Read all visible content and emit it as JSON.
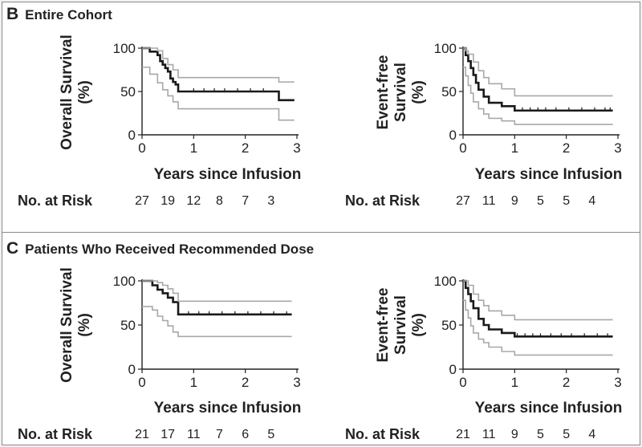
{
  "panels": [
    {
      "letter": "B",
      "title": "Entire Cohort",
      "risk_label": "No. at Risk",
      "charts": [
        {
          "type": "line",
          "ylabel_lines": [
            "Overall Survival",
            "(%)"
          ],
          "xlabel": "Years since Infusion",
          "xlim": [
            0,
            3
          ],
          "ylim": [
            0,
            100
          ],
          "xticks": [
            0,
            1,
            2,
            3
          ],
          "yticks": [
            0,
            50,
            100
          ],
          "series": [
            {
              "name": "estimate",
              "x": [
                0,
                0.15,
                0.3,
                0.35,
                0.4,
                0.45,
                0.5,
                0.55,
                0.6,
                0.65,
                0.7,
                2.65,
                2.95
              ],
              "y": [
                100,
                96,
                92,
                85,
                81,
                77,
                73,
                65,
                61,
                58,
                50,
                40,
                40
              ]
            },
            {
              "name": "upper",
              "x": [
                0,
                0.3,
                0.4,
                0.5,
                0.6,
                0.7,
                2.65,
                2.95
              ],
              "y": [
                100,
                97,
                88,
                81,
                75,
                66,
                61,
                61
              ]
            },
            {
              "name": "lower",
              "x": [
                0,
                0.15,
                0.3,
                0.4,
                0.5,
                0.6,
                0.7,
                2.65,
                2.95
              ],
              "y": [
                78,
                70,
                60,
                52,
                45,
                38,
                30,
                17,
                17
              ]
            }
          ],
          "censor_x": [
            1.0,
            1.2,
            1.4,
            1.6,
            1.85,
            2.1,
            2.35
          ],
          "risk_x": [
            0,
            0.5,
            1.0,
            1.5,
            2.0,
            2.5
          ],
          "risk_values": [
            "27",
            "19",
            "12",
            "8",
            "7",
            "3"
          ]
        },
        {
          "type": "line",
          "ylabel_lines": [
            "Event-free",
            "Survival",
            "(%)"
          ],
          "xlabel": "Years since Infusion",
          "xlim": [
            0,
            3
          ],
          "ylim": [
            0,
            100
          ],
          "xticks": [
            0,
            1,
            2,
            3
          ],
          "yticks": [
            0,
            50,
            100
          ],
          "series": [
            {
              "name": "estimate",
              "x": [
                0,
                0.05,
                0.1,
                0.15,
                0.2,
                0.25,
                0.3,
                0.4,
                0.5,
                0.75,
                1.0,
                2.9
              ],
              "y": [
                100,
                92,
                85,
                77,
                69,
                60,
                52,
                44,
                37,
                33,
                28,
                28
              ]
            },
            {
              "name": "upper",
              "x": [
                0,
                0.05,
                0.1,
                0.2,
                0.3,
                0.4,
                0.5,
                0.75,
                1.0,
                2.9
              ],
              "y": [
                100,
                97,
                93,
                84,
                74,
                66,
                59,
                53,
                45,
                45
              ]
            },
            {
              "name": "lower",
              "x": [
                0,
                0.05,
                0.1,
                0.15,
                0.2,
                0.3,
                0.4,
                0.5,
                0.75,
                1.0,
                2.9
              ],
              "y": [
                78,
                68,
                57,
                48,
                38,
                30,
                24,
                19,
                16,
                12,
                12
              ]
            }
          ],
          "censor_x": [
            1.15,
            1.3,
            1.45,
            1.6,
            1.8,
            2.05,
            2.3,
            2.55,
            2.75,
            2.85
          ],
          "risk_x": [
            0,
            0.5,
            1.0,
            1.5,
            2.0,
            2.5
          ],
          "risk_values": [
            "27",
            "11",
            "9",
            "5",
            "5",
            "4"
          ]
        }
      ]
    },
    {
      "letter": "C",
      "title": "Patients Who Received Recommended Dose",
      "risk_label": "No. at Risk",
      "charts": [
        {
          "type": "line",
          "ylabel_lines": [
            "Overall Survival",
            "(%)"
          ],
          "xlabel": "Years since Infusion",
          "xlim": [
            0,
            3
          ],
          "ylim": [
            0,
            100
          ],
          "xticks": [
            0,
            1,
            2,
            3
          ],
          "yticks": [
            0,
            50,
            100
          ],
          "series": [
            {
              "name": "estimate",
              "x": [
                0,
                0.2,
                0.3,
                0.4,
                0.5,
                0.6,
                0.7,
                2.9
              ],
              "y": [
                100,
                95,
                90,
                86,
                81,
                76,
                62,
                62
              ]
            },
            {
              "name": "upper",
              "x": [
                0,
                0.3,
                0.4,
                0.5,
                0.6,
                0.7,
                2.9
              ],
              "y": [
                100,
                98,
                95,
                91,
                86,
                77,
                77
              ]
            },
            {
              "name": "lower",
              "x": [
                0,
                0.2,
                0.3,
                0.4,
                0.5,
                0.6,
                0.7,
                2.9
              ],
              "y": [
                71,
                67,
                60,
                55,
                49,
                42,
                37,
                37
              ]
            }
          ],
          "censor_x": [
            0.9,
            1.1,
            1.3,
            1.55,
            1.8,
            2.05,
            2.3,
            2.55,
            2.8
          ],
          "risk_x": [
            0,
            0.5,
            1.0,
            1.5,
            2.0,
            2.5
          ],
          "risk_values": [
            "21",
            "17",
            "11",
            "7",
            "6",
            "5"
          ]
        },
        {
          "type": "line",
          "ylabel_lines": [
            "Event-free",
            "Survival",
            "(%)"
          ],
          "xlabel": "Years since Infusion",
          "xlim": [
            0,
            3
          ],
          "ylim": [
            0,
            100
          ],
          "xticks": [
            0,
            1,
            2,
            3
          ],
          "yticks": [
            0,
            50,
            100
          ],
          "series": [
            {
              "name": "estimate",
              "x": [
                0,
                0.05,
                0.1,
                0.15,
                0.2,
                0.3,
                0.4,
                0.5,
                0.75,
                1.0,
                2.9
              ],
              "y": [
                100,
                92,
                85,
                77,
                69,
                57,
                50,
                45,
                41,
                37,
                37
              ]
            },
            {
              "name": "upper",
              "x": [
                0,
                0.1,
                0.2,
                0.3,
                0.4,
                0.5,
                0.75,
                1.0,
                2.9
              ],
              "y": [
                100,
                95,
                85,
                78,
                72,
                66,
                61,
                56,
                56
              ]
            },
            {
              "name": "lower",
              "x": [
                0,
                0.05,
                0.1,
                0.15,
                0.2,
                0.3,
                0.4,
                0.5,
                0.75,
                1.0,
                2.9
              ],
              "y": [
                78,
                67,
                58,
                49,
                41,
                34,
                30,
                25,
                20,
                16,
                16
              ]
            }
          ],
          "censor_x": [
            1.05,
            1.2,
            1.35,
            1.5,
            1.7,
            1.9,
            2.1,
            2.35,
            2.6,
            2.8
          ],
          "risk_x": [
            0,
            0.5,
            1.0,
            1.5,
            2.0,
            2.5
          ],
          "risk_values": [
            "21",
            "11",
            "9",
            "5",
            "5",
            "4"
          ]
        }
      ]
    }
  ]
}
